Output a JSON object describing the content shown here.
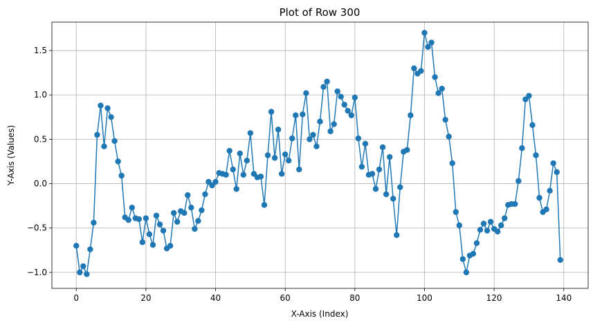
{
  "chart_data": {
    "type": "line",
    "title": "Plot of Row 300",
    "xlabel": "X-Axis (Index)",
    "ylabel": "Y-Axis (Values)",
    "xlim": [
      -7,
      147
    ],
    "ylim": [
      -1.18,
      1.82
    ],
    "xticks": [
      0,
      20,
      40,
      60,
      80,
      100,
      120,
      140
    ],
    "xtick_labels": [
      "0",
      "20",
      "40",
      "60",
      "80",
      "100",
      "120",
      "140"
    ],
    "yticks": [
      -1.0,
      -0.5,
      0.0,
      0.5,
      1.0,
      1.5
    ],
    "ytick_labels": [
      "−1.0",
      "−0.5",
      "0.0",
      "0.5",
      "1.0",
      "1.5"
    ],
    "grid": true,
    "marker": "circle",
    "color": "#1f77b4",
    "series": [
      {
        "x": [
          0,
          1,
          2,
          3,
          4,
          5,
          6,
          7,
          8,
          9,
          10,
          11,
          12,
          13,
          14,
          15,
          16,
          17,
          18,
          19,
          20,
          21,
          22,
          23,
          24,
          25,
          26,
          27,
          28,
          29,
          30,
          31,
          32,
          33,
          34,
          35,
          36,
          37,
          38,
          39,
          40,
          41,
          42,
          43,
          44,
          45,
          46,
          47,
          48,
          49,
          50,
          51,
          52,
          53,
          54,
          55,
          56,
          57,
          58,
          59,
          60,
          61,
          62,
          63,
          64,
          65,
          66,
          67,
          68,
          69,
          70,
          71,
          72,
          73,
          74,
          75,
          76,
          77,
          78,
          79,
          80,
          81,
          82,
          83,
          84,
          85,
          86,
          87,
          88,
          89,
          90,
          91,
          92,
          93,
          94,
          95,
          96,
          97,
          98,
          99,
          100,
          101,
          102,
          103,
          104,
          105,
          106,
          107,
          108,
          109,
          110,
          111,
          112,
          113,
          114,
          115,
          116,
          117,
          118,
          119,
          120,
          121,
          122,
          123,
          124,
          125,
          126,
          127,
          128,
          129,
          130,
          131,
          132,
          133,
          134,
          135,
          136,
          137,
          138,
          139
        ],
        "y": [
          -0.7,
          -1.0,
          -0.93,
          -1.02,
          -0.74,
          -0.44,
          0.55,
          0.88,
          0.42,
          0.85,
          0.75,
          0.48,
          0.25,
          0.09,
          -0.38,
          -0.41,
          -0.27,
          -0.39,
          -0.4,
          -0.66,
          -0.39,
          -0.57,
          -0.69,
          -0.36,
          -0.46,
          -0.53,
          -0.73,
          -0.7,
          -0.33,
          -0.43,
          -0.31,
          -0.33,
          -0.13,
          -0.27,
          -0.51,
          -0.42,
          -0.3,
          -0.12,
          0.02,
          -0.02,
          0.02,
          0.12,
          0.11,
          0.1,
          0.37,
          0.16,
          -0.06,
          0.34,
          0.1,
          0.26,
          0.57,
          0.11,
          0.07,
          0.08,
          -0.24,
          0.32,
          0.81,
          0.29,
          0.61,
          0.11,
          0.33,
          0.26,
          0.51,
          0.77,
          0.16,
          0.78,
          1.02,
          0.5,
          0.55,
          0.42,
          0.7,
          1.09,
          1.15,
          0.59,
          0.67,
          1.04,
          0.98,
          0.89,
          0.82,
          0.77,
          0.97,
          0.51,
          0.19,
          0.45,
          0.1,
          0.11,
          -0.06,
          0.16,
          0.41,
          -0.12,
          0.3,
          -0.17,
          -0.58,
          -0.04,
          0.36,
          0.38,
          0.77,
          1.3,
          1.24,
          1.27,
          1.7,
          1.54,
          1.59,
          1.2,
          1.02,
          1.07,
          0.72,
          0.53,
          0.23,
          -0.32,
          -0.47,
          -0.85,
          -1.0,
          -0.81,
          -0.79,
          -0.67,
          -0.52,
          -0.45,
          -0.53,
          -0.43,
          -0.51,
          -0.54,
          -0.47,
          -0.39,
          -0.24,
          -0.23,
          -0.23,
          0.03,
          0.4,
          0.95,
          0.99,
          0.66,
          0.32,
          -0.16,
          -0.32,
          -0.29,
          -0.08,
          0.23,
          0.13,
          -0.86
        ]
      }
    ]
  }
}
